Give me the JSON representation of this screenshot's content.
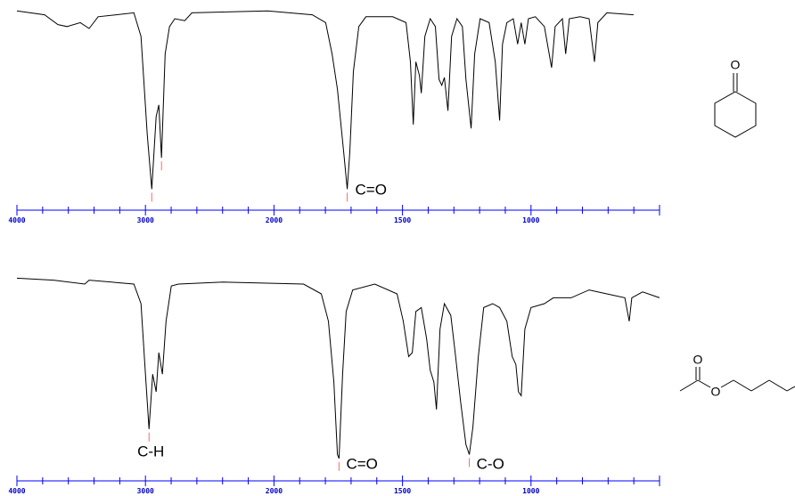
{
  "chart_data": [
    {
      "type": "line",
      "molecule_atoms": [
        "O"
      ],
      "x": [
        4000,
        3785,
        3681,
        3611,
        3507,
        3438,
        3368,
        3090,
        3035,
        2986,
        2951,
        2917,
        2896,
        2875,
        2847,
        2813,
        2771,
        2694,
        2639,
        2049,
        1851,
        1799,
        1774,
        1753,
        1729,
        1715,
        1705,
        1691,
        1670,
        1642,
        1538,
        1486,
        1469,
        1458,
        1448,
        1434,
        1427,
        1413,
        1392,
        1372,
        1358,
        1347,
        1337,
        1323,
        1309,
        1288,
        1267,
        1253,
        1233,
        1219,
        1198,
        1163,
        1139,
        1122,
        1111,
        1094,
        1069,
        1052,
        1038,
        1024,
        1010,
        983,
        948,
        920,
        906,
        878,
        865,
        851,
        809,
        774,
        753,
        740,
        705,
        601
      ],
      "values": [
        99,
        97,
        92,
        91,
        93,
        90,
        96,
        98,
        86,
        36,
        8,
        45,
        51,
        24,
        77,
        91,
        95,
        94,
        98,
        99,
        97,
        93,
        77,
        59,
        27,
        8,
        27,
        68,
        91,
        96,
        96,
        93,
        73,
        41,
        73,
        66,
        57,
        86,
        95,
        91,
        64,
        61,
        65,
        48,
        86,
        95,
        91,
        64,
        39,
        77,
        95,
        93,
        73,
        43,
        82,
        93,
        95,
        82,
        93,
        82,
        95,
        96,
        91,
        70,
        91,
        95,
        77,
        95,
        96,
        95,
        73,
        93,
        98,
        97
      ],
      "color": "#000000",
      "ylim": [
        0,
        100
      ],
      "xlim": [
        4000,
        500
      ],
      "x_scale_break": 2000,
      "xticks": [
        4000,
        3000,
        2000,
        1500,
        1000
      ],
      "minor_xticks": [
        3800,
        3600,
        3400,
        3200,
        2800,
        2600,
        2400,
        2200,
        1900,
        1800,
        1700,
        1600,
        1400,
        1300,
        1200,
        1100,
        900,
        800,
        700,
        600
      ],
      "axis_color": "#0000ff",
      "peak_marks": [
        2951,
        2875,
        1715
      ],
      "peak_color": "#ff6666",
      "annotations": [
        {
          "text": "C=O",
          "x": 1684
        }
      ]
    },
    {
      "type": "line",
      "molecule_atoms": [
        "O",
        "O"
      ],
      "x": [
        4000,
        3715,
        3472,
        3438,
        3090,
        3035,
        3000,
        2972,
        2944,
        2917,
        2896,
        2868,
        2840,
        2799,
        2743,
        2396,
        1885,
        1816,
        1788,
        1767,
        1753,
        1747,
        1733,
        1719,
        1694,
        1608,
        1521,
        1497,
        1476,
        1462,
        1448,
        1427,
        1406,
        1392,
        1378,
        1368,
        1354,
        1337,
        1312,
        1295,
        1274,
        1253,
        1240,
        1226,
        1205,
        1184,
        1149,
        1122,
        1094,
        1073,
        1059,
        1049,
        1038,
        1024,
        1000,
        948,
        913,
        844,
        774,
        705,
        635,
        618,
        608,
        566,
        500
      ],
      "values": [
        98,
        97,
        95,
        97,
        95,
        85,
        49,
        21,
        49,
        40,
        60,
        49,
        76,
        94,
        95,
        96,
        95,
        90,
        76,
        45,
        8,
        6,
        49,
        81,
        92,
        95,
        90,
        76,
        58,
        60,
        81,
        83,
        67,
        51,
        45,
        31,
        72,
        85,
        79,
        60,
        35,
        13,
        8,
        22,
        58,
        83,
        85,
        83,
        76,
        58,
        54,
        40,
        38,
        72,
        83,
        85,
        88,
        88,
        92,
        90,
        88,
        76,
        88,
        91,
        88
      ],
      "color": "#000000",
      "ylim": [
        0,
        100
      ],
      "xlim": [
        4000,
        500
      ],
      "x_scale_break": 2000,
      "xticks": [
        4000,
        3000,
        2000,
        1500,
        1000
      ],
      "minor_xticks": [
        3800,
        3600,
        3400,
        3200,
        2800,
        2600,
        2400,
        2200,
        1900,
        1800,
        1700,
        1600,
        1400,
        1300,
        1200,
        1100,
        900,
        800,
        700,
        600
      ],
      "axis_color": "#0000ff",
      "peak_marks": [
        2972,
        1747,
        1240
      ],
      "peak_color": "#ff6666",
      "annotations": [
        {
          "text": "C-H",
          "x": 3063
        },
        {
          "text": "C=O",
          "x": 1719
        },
        {
          "text": "C-O",
          "x": 1212
        }
      ]
    }
  ]
}
